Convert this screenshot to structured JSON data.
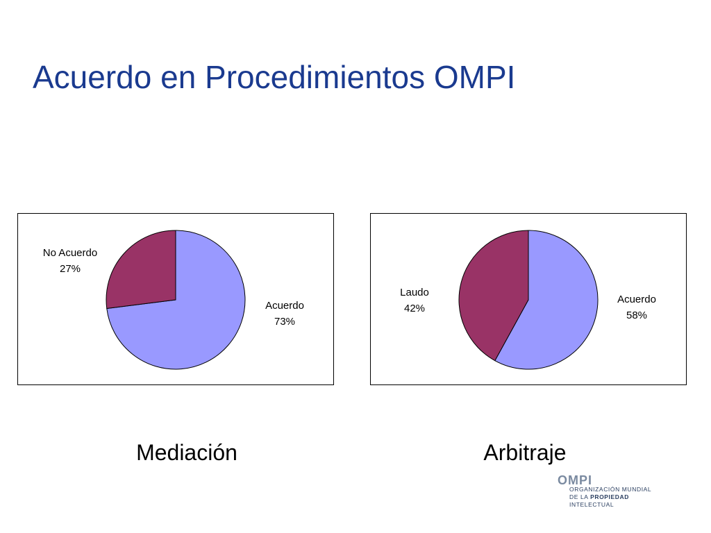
{
  "slide": {
    "title": "Acuerdo en Procedimientos OMPI"
  },
  "chart_data": [
    {
      "type": "pie",
      "caption": "Mediación",
      "start_angle_deg": 0,
      "direction": "clockwise",
      "slices": [
        {
          "label": "Acuerdo",
          "value": 73,
          "value_text": "73%",
          "color": "#9999ff"
        },
        {
          "label": "No Acuerdo",
          "value": 27,
          "value_text": "27%",
          "color": "#993366"
        }
      ]
    },
    {
      "type": "pie",
      "caption": "Arbitraje",
      "start_angle_deg": 0,
      "direction": "clockwise",
      "slices": [
        {
          "label": "Acuerdo",
          "value": 58,
          "value_text": "58%",
          "color": "#9999ff"
        },
        {
          "label": "Laudo",
          "value": 42,
          "value_text": "42%",
          "color": "#993366"
        }
      ]
    }
  ],
  "logo": {
    "name": "OMPI",
    "line1": "ORGANIZACIÓN MUNDIAL",
    "line2_prefix": "DE LA ",
    "line2_bold": "PROPIEDAD",
    "line3": "INTELECTUAL"
  }
}
